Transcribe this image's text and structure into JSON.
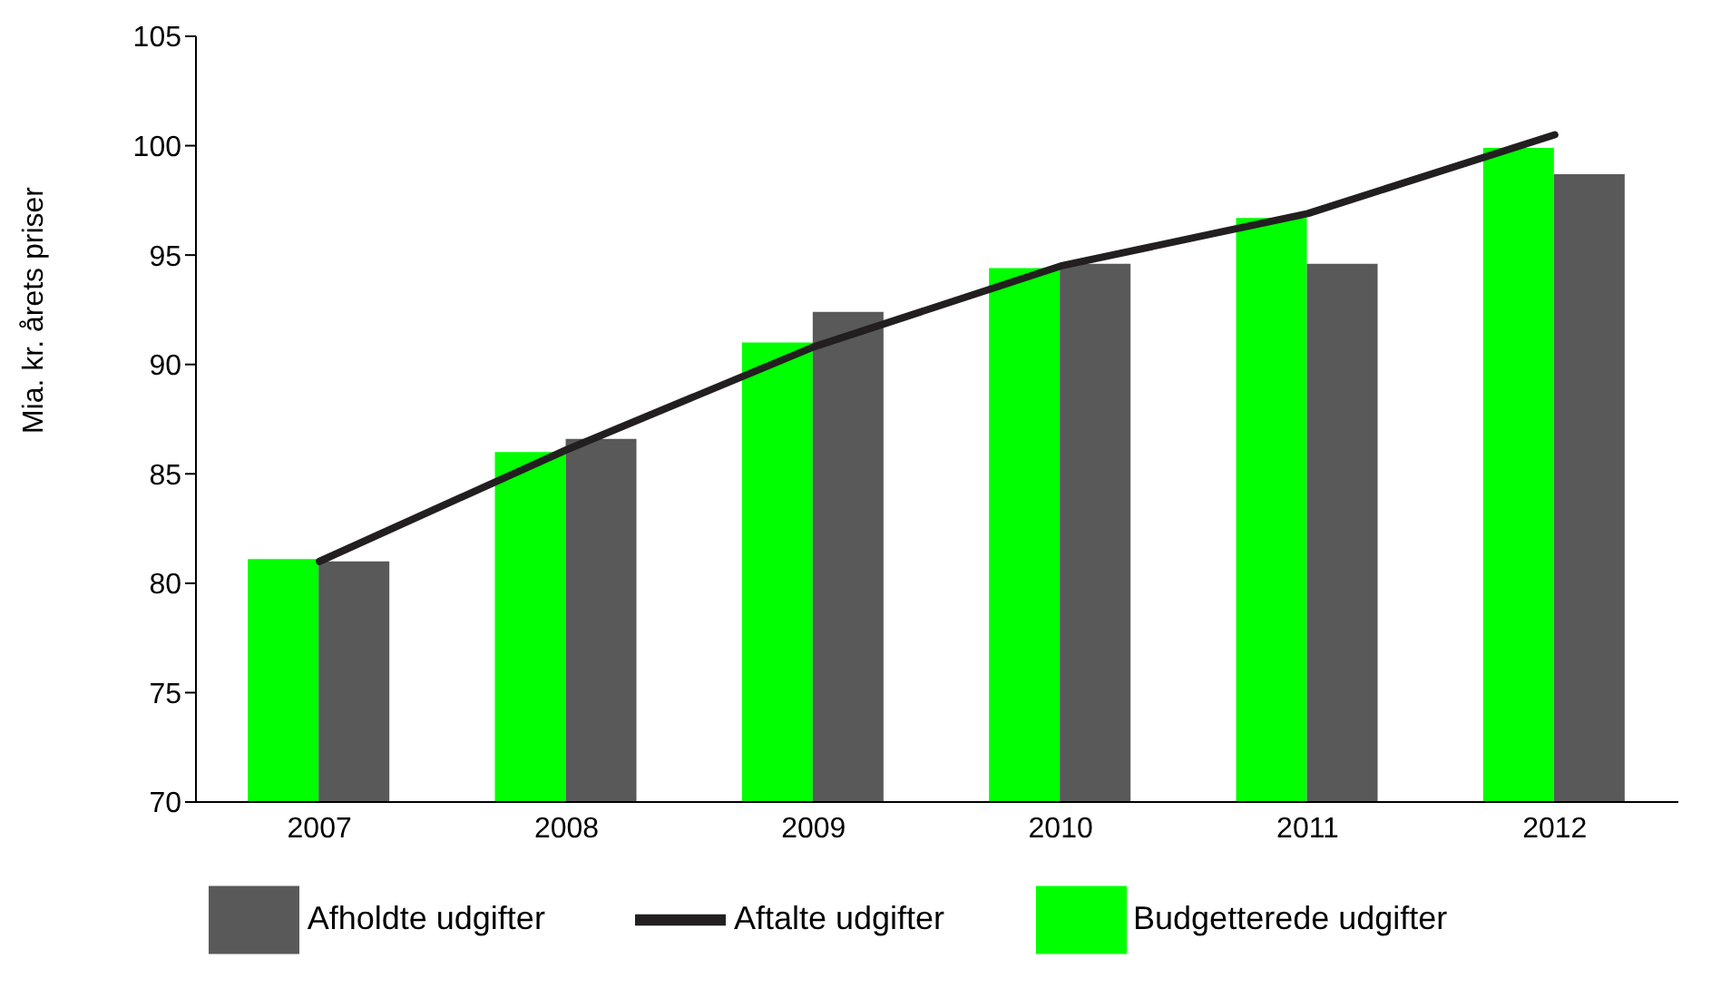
{
  "chart_data": {
    "type": "bar",
    "ylabel": "Mia. kr. årets priser",
    "categories": [
      "2007",
      "2008",
      "2009",
      "2010",
      "2011",
      "2012"
    ],
    "series": [
      {
        "name": "Budgetterede udgifter",
        "color": "#00ff00",
        "values": [
          81.1,
          86.0,
          91.0,
          94.4,
          96.7,
          99.9
        ]
      },
      {
        "name": "Afholdte udgifter",
        "color": "#595959",
        "values": [
          81.0,
          86.6,
          92.4,
          94.6,
          94.6,
          98.7
        ]
      },
      {
        "name": "Aftalte udgifter",
        "type": "line",
        "color": "#231f20",
        "values": [
          81.0,
          86.1,
          90.8,
          94.5,
          96.9,
          100.5
        ]
      }
    ],
    "ylim": [
      70,
      105
    ],
    "yticks": [
      70,
      75,
      80,
      85,
      90,
      95,
      100,
      105
    ],
    "grid": false,
    "legend": "bottom",
    "marker": "none",
    "line_style": "solid"
  }
}
